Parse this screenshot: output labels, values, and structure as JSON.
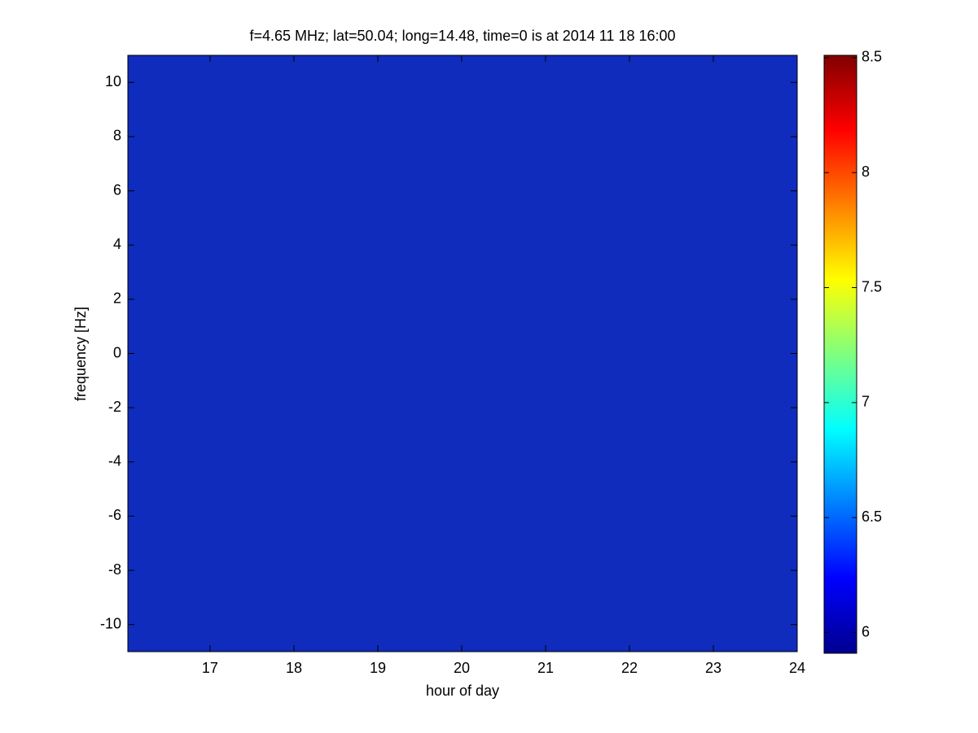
{
  "chart_data": {
    "type": "heatmap",
    "title": "f=4.65 MHz;  lat=50.04; long=14.48, time=0 is at 2014 11 18 16:00",
    "x_label": "hour of day",
    "y_label": "frequency [Hz]",
    "xlim": [
      16.02,
      24
    ],
    "xticks": [
      17,
      18,
      19,
      20,
      21,
      22,
      23,
      24
    ],
    "ylim": [
      -11,
      11
    ],
    "yticks": [
      -10,
      -8,
      -6,
      -4,
      -2,
      0,
      2,
      4,
      6,
      8,
      10
    ],
    "colormap": "jet",
    "clim": [
      5.91,
      8.51
    ],
    "cticks": [
      6,
      6.5,
      7,
      7.5,
      8,
      8.5
    ]
  }
}
